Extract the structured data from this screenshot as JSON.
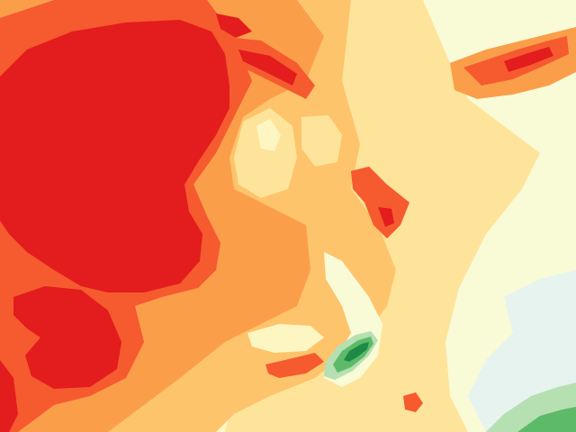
{
  "map": {
    "colors": {
      "class_1": "#e31c1e",
      "class_2": "#f65a2f",
      "class_3": "#fb9e4a",
      "class_4": "#fdc46c",
      "class_5": "#fee49b",
      "class_6": "#fef6c2",
      "class_7": "#f9fbd7",
      "class_8": "#e6f3ee",
      "class_9": "#b6e0b1",
      "class_10": "#5dba68",
      "class_11": "#1d8a47"
    }
  }
}
